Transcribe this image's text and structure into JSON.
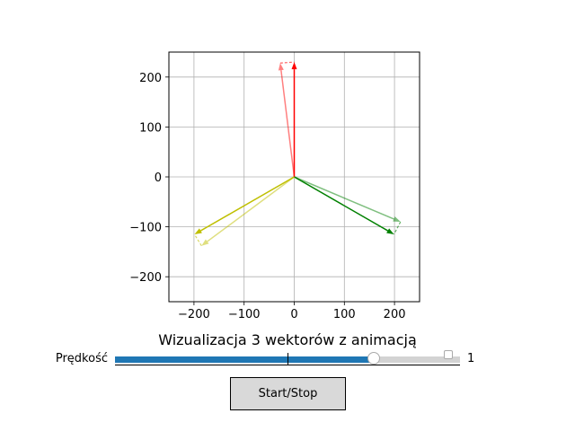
{
  "chart_data": {
    "type": "vector-plot",
    "title": "Wizualizacja 3 wektorów z animacją",
    "xlim": [
      -250,
      250
    ],
    "ylim": [
      -250,
      250
    ],
    "x_ticks": [
      -200,
      -100,
      0,
      100,
      200
    ],
    "y_ticks": [
      -200,
      -100,
      0,
      100,
      200
    ],
    "x_tick_labels": [
      "−200",
      "−100",
      "0",
      "100",
      "200"
    ],
    "y_tick_labels": [
      "−200",
      "−100",
      "0",
      "100",
      "200"
    ],
    "grid": true,
    "vectors": [
      {
        "color": "#ff0000",
        "alpha": 1.0,
        "x": 0,
        "y": 230
      },
      {
        "color": "#008000",
        "alpha": 1.0,
        "x": 199,
        "y": -115
      },
      {
        "color": "#bfbf00",
        "alpha": 1.0,
        "x": -199,
        "y": -115
      }
    ],
    "previous_vectors": [
      {
        "color": "#ff0000",
        "alpha": 0.5,
        "x": -28,
        "y": 228
      },
      {
        "color": "#008000",
        "alpha": 0.5,
        "x": 212,
        "y": -90
      },
      {
        "color": "#bfbf00",
        "alpha": 0.5,
        "x": -185,
        "y": -138
      }
    ]
  },
  "slider": {
    "label": "Prędkość",
    "value_text": "1",
    "fraction": 0.75,
    "fill_color": "#1f77b4"
  },
  "button": {
    "label": "Start/Stop"
  }
}
